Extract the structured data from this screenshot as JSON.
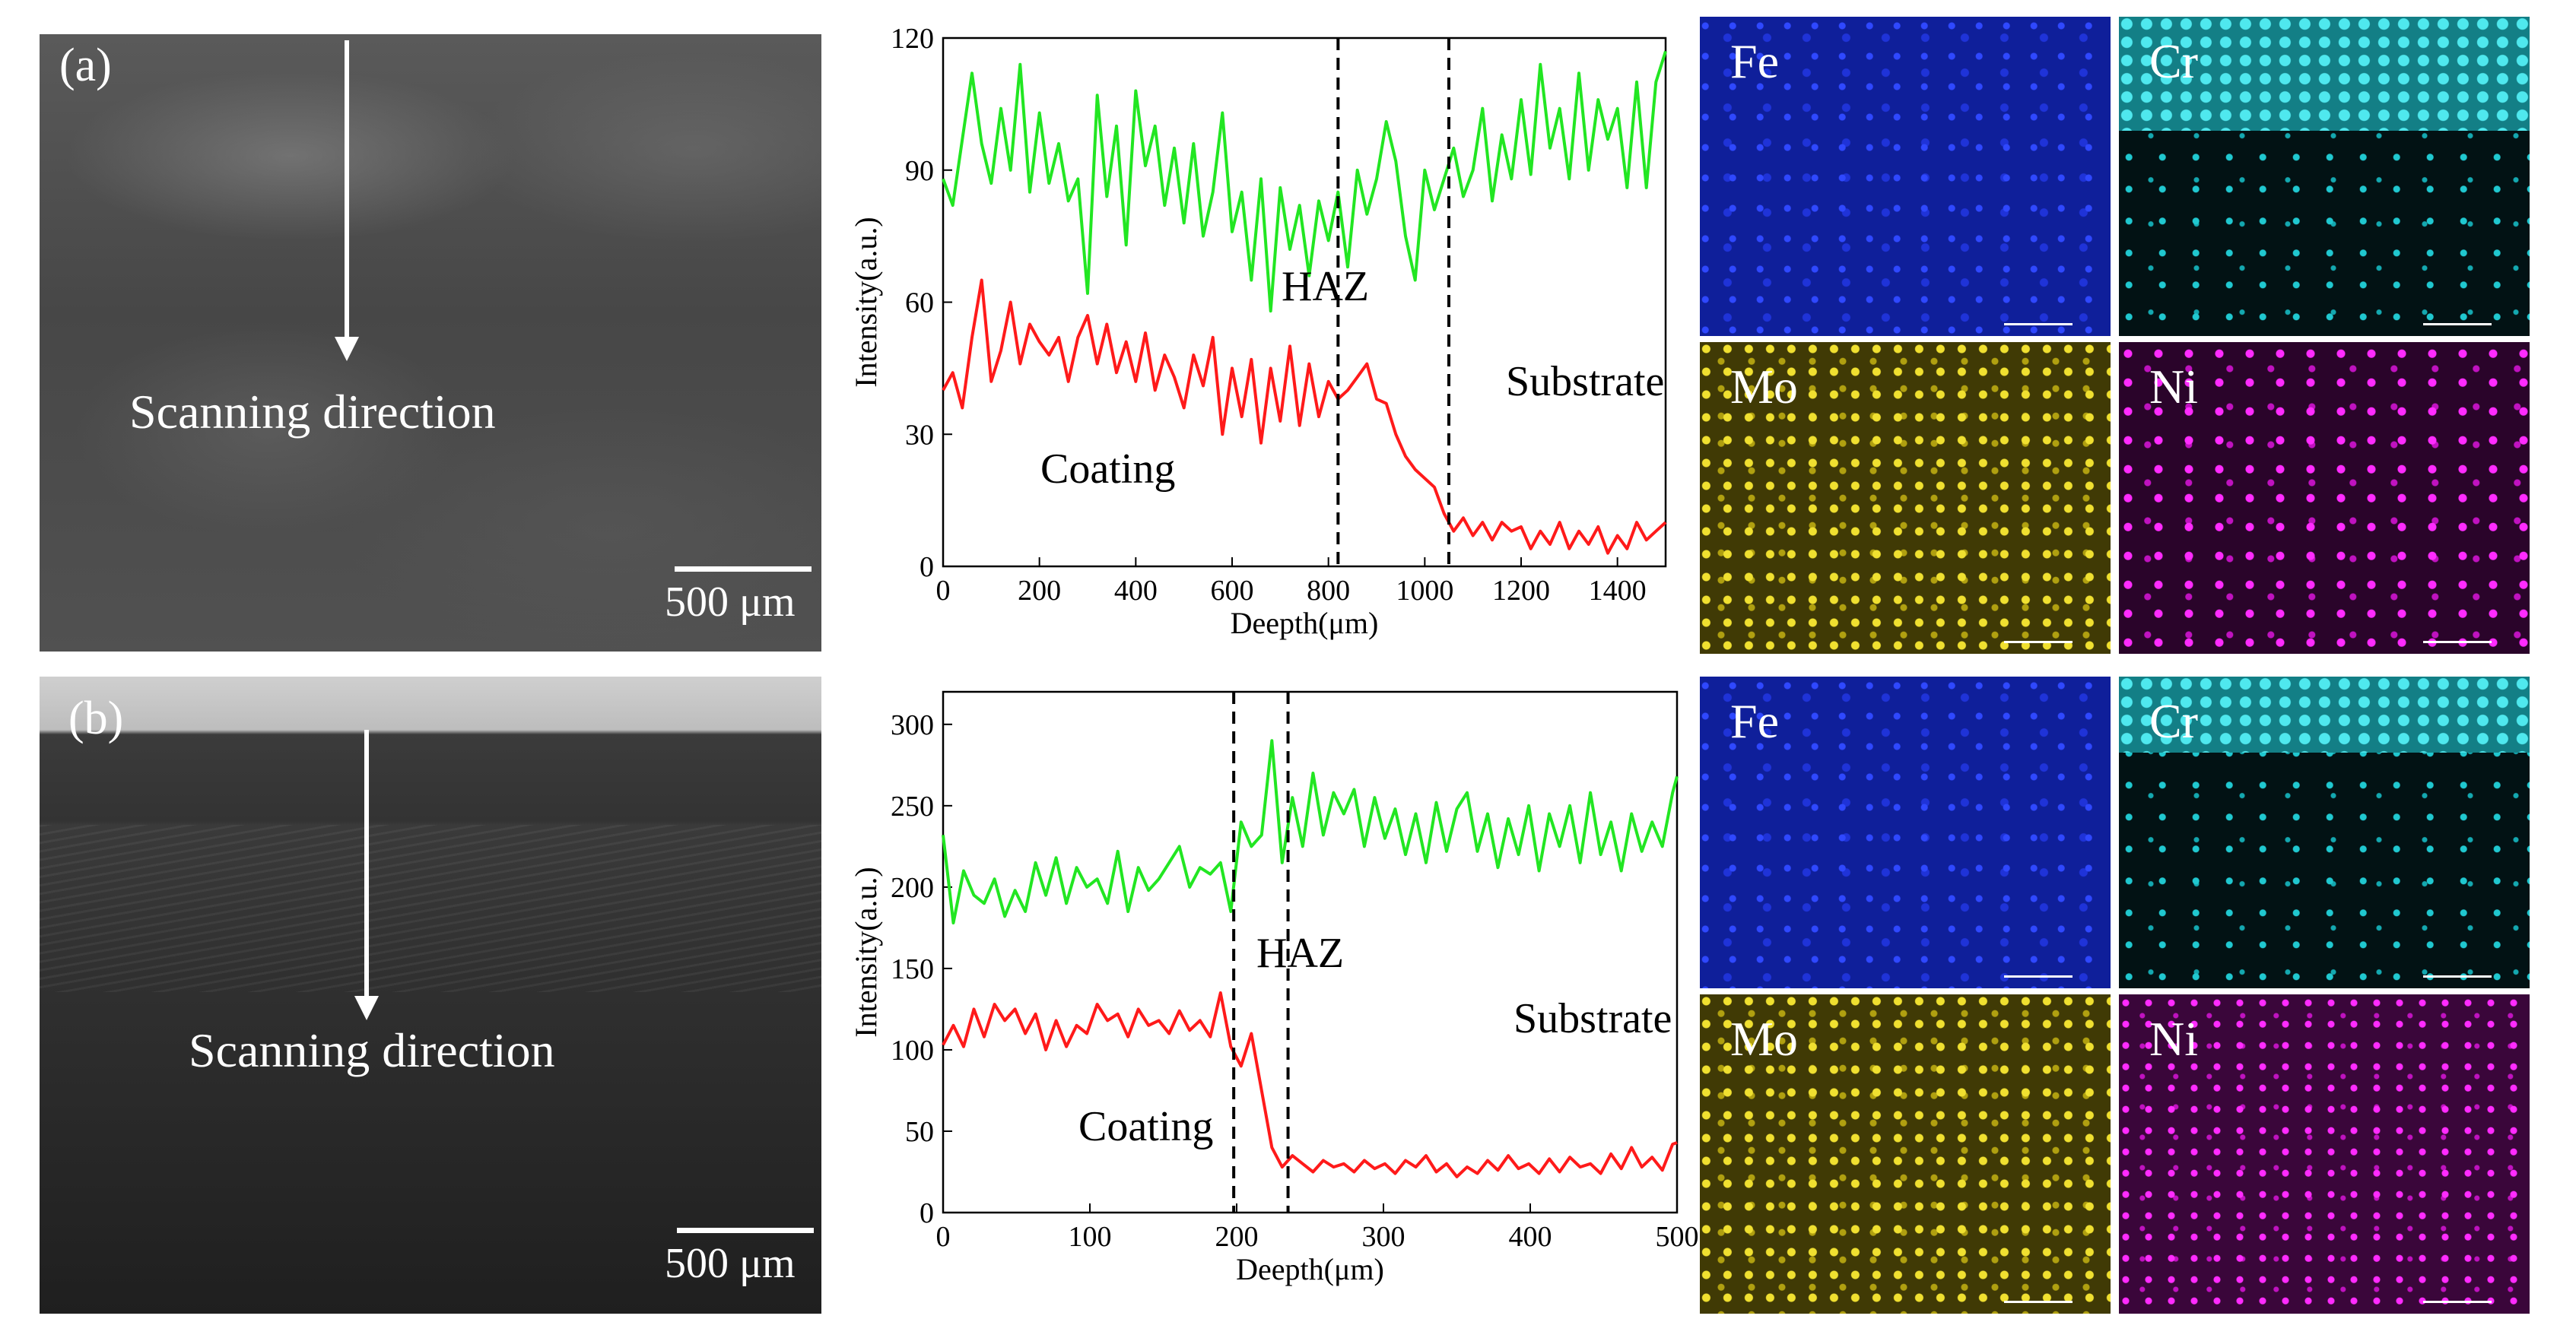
{
  "sem": {
    "a": {
      "label": "(a)",
      "scan_text": "Scanning direction",
      "scale_text": "500 μm"
    },
    "b": {
      "label": "(b)",
      "scan_text": "Scanning direction",
      "scale_text": "500 μm"
    }
  },
  "chart_data": [
    {
      "type": "line",
      "xlabel": "Deepth(μm)",
      "ylabel": "Intensity(a.u.)",
      "xlim": [
        0,
        1500
      ],
      "ylim": [
        0,
        120
      ],
      "xticks": [
        0,
        200,
        400,
        600,
        800,
        1000,
        1200,
        1400
      ],
      "yticks": [
        0,
        30,
        60,
        90,
        120
      ],
      "vlines": [
        820,
        1050
      ],
      "annotations": [
        "HAZ",
        "Substrate",
        "Coating"
      ],
      "series": [
        {
          "name": "green",
          "color": "#22e622",
          "x": [
            0,
            20,
            40,
            60,
            80,
            100,
            120,
            140,
            160,
            180,
            200,
            220,
            240,
            260,
            280,
            300,
            320,
            340,
            360,
            380,
            400,
            420,
            440,
            460,
            480,
            500,
            520,
            540,
            560,
            580,
            600,
            620,
            640,
            660,
            680,
            700,
            720,
            740,
            760,
            780,
            800,
            820,
            840,
            860,
            880,
            900,
            920,
            940,
            960,
            980,
            1000,
            1020,
            1040,
            1060,
            1080,
            1100,
            1120,
            1140,
            1160,
            1180,
            1200,
            1220,
            1240,
            1260,
            1280,
            1300,
            1320,
            1340,
            1360,
            1380,
            1400,
            1420,
            1440,
            1460,
            1480,
            1500
          ],
          "values": [
            88,
            82,
            97,
            112,
            96,
            87,
            104,
            90,
            114,
            85,
            103,
            87,
            96,
            83,
            88,
            62,
            107,
            84,
            100,
            73,
            108,
            91,
            100,
            82,
            95,
            78,
            96,
            75,
            85,
            103,
            76,
            85,
            65,
            88,
            58,
            86,
            72,
            82,
            66,
            83,
            74,
            85,
            68,
            90,
            80,
            88,
            101,
            92,
            75,
            65,
            90,
            81,
            88,
            95,
            84,
            90,
            104,
            83,
            98,
            88,
            106,
            89,
            114,
            95,
            104,
            88,
            112,
            90,
            106,
            97,
            104,
            86,
            110,
            86,
            110,
            117
          ]
        },
        {
          "name": "red",
          "color": "#ff1a1a",
          "x": [
            0,
            20,
            40,
            60,
            80,
            100,
            120,
            140,
            160,
            180,
            200,
            220,
            240,
            260,
            280,
            300,
            320,
            340,
            360,
            380,
            400,
            420,
            440,
            460,
            480,
            500,
            520,
            540,
            560,
            580,
            600,
            620,
            640,
            660,
            680,
            700,
            720,
            740,
            760,
            780,
            800,
            820,
            840,
            860,
            880,
            900,
            920,
            940,
            960,
            980,
            1000,
            1020,
            1040,
            1060,
            1080,
            1100,
            1120,
            1140,
            1160,
            1180,
            1200,
            1220,
            1240,
            1260,
            1280,
            1300,
            1320,
            1340,
            1360,
            1380,
            1400,
            1420,
            1440,
            1460,
            1480,
            1500
          ],
          "values": [
            40,
            44,
            36,
            52,
            65,
            42,
            49,
            60,
            46,
            55,
            51,
            48,
            52,
            42,
            52,
            57,
            46,
            55,
            44,
            51,
            42,
            53,
            40,
            48,
            43,
            36,
            48,
            41,
            52,
            30,
            45,
            34,
            47,
            28,
            45,
            33,
            50,
            32,
            46,
            34,
            42,
            38,
            40,
            43,
            46,
            38,
            37,
            30,
            25,
            22,
            20,
            18,
            12,
            8,
            11,
            7,
            10,
            6,
            10,
            8,
            9,
            4,
            8,
            5,
            10,
            4,
            8,
            5,
            9,
            3,
            7,
            4,
            10,
            6,
            8,
            10
          ]
        }
      ]
    },
    {
      "type": "line",
      "xlabel": "Deepth(μm)",
      "ylabel": "Intensity(a.u.)",
      "xlim": [
        0,
        500
      ],
      "ylim": [
        0,
        320
      ],
      "xticks": [
        0,
        100,
        200,
        300,
        400,
        500
      ],
      "yticks": [
        0,
        50,
        100,
        150,
        200,
        250,
        300
      ],
      "vlines": [
        198,
        235
      ],
      "annotations": [
        "HAZ",
        "Substrate",
        "Coating"
      ],
      "series": [
        {
          "name": "green",
          "color": "#22e622",
          "x": [
            0,
            7,
            14,
            21,
            28,
            35,
            42,
            49,
            56,
            63,
            70,
            77,
            84,
            91,
            98,
            105,
            112,
            119,
            126,
            133,
            140,
            147,
            154,
            161,
            168,
            175,
            182,
            189,
            196,
            203,
            210,
            217,
            224,
            231,
            238,
            245,
            252,
            259,
            266,
            273,
            280,
            287,
            294,
            301,
            308,
            315,
            322,
            329,
            336,
            343,
            350,
            357,
            364,
            371,
            378,
            385,
            392,
            399,
            406,
            413,
            420,
            427,
            434,
            441,
            448,
            455,
            462,
            469,
            476,
            483,
            490,
            497,
            500
          ],
          "values": [
            232,
            178,
            210,
            195,
            190,
            205,
            182,
            198,
            185,
            215,
            195,
            218,
            190,
            212,
            200,
            205,
            190,
            222,
            185,
            212,
            198,
            205,
            215,
            225,
            200,
            212,
            208,
            215,
            185,
            240,
            225,
            232,
            290,
            215,
            255,
            225,
            270,
            232,
            258,
            245,
            260,
            225,
            255,
            230,
            248,
            220,
            245,
            215,
            252,
            222,
            248,
            258,
            222,
            245,
            212,
            242,
            220,
            250,
            210,
            245,
            225,
            250,
            215,
            258,
            220,
            240,
            210,
            245,
            222,
            240,
            225,
            258,
            268
          ]
        },
        {
          "name": "red",
          "color": "#ff1a1a",
          "x": [
            0,
            7,
            14,
            21,
            28,
            35,
            42,
            49,
            56,
            63,
            70,
            77,
            84,
            91,
            98,
            105,
            112,
            119,
            126,
            133,
            140,
            147,
            154,
            161,
            168,
            175,
            182,
            189,
            196,
            203,
            210,
            217,
            224,
            231,
            238,
            245,
            252,
            259,
            266,
            273,
            280,
            287,
            294,
            301,
            308,
            315,
            322,
            329,
            336,
            343,
            350,
            357,
            364,
            371,
            378,
            385,
            392,
            399,
            406,
            413,
            420,
            427,
            434,
            441,
            448,
            455,
            462,
            469,
            476,
            483,
            490,
            497,
            500
          ],
          "values": [
            103,
            115,
            102,
            125,
            108,
            128,
            118,
            125,
            110,
            122,
            100,
            118,
            102,
            115,
            110,
            128,
            118,
            122,
            108,
            125,
            115,
            118,
            110,
            124,
            112,
            118,
            108,
            135,
            102,
            90,
            110,
            75,
            40,
            28,
            35,
            30,
            25,
            32,
            28,
            30,
            25,
            32,
            27,
            30,
            24,
            32,
            28,
            35,
            25,
            30,
            22,
            28,
            24,
            32,
            26,
            35,
            27,
            30,
            24,
            33,
            25,
            34,
            28,
            30,
            24,
            36,
            27,
            40,
            28,
            34,
            26,
            42,
            43
          ]
        }
      ]
    }
  ],
  "maps": {
    "row1": {
      "fe": "Fe",
      "cr": "Cr",
      "mo": "Mo",
      "ni": "Ni"
    },
    "row2": {
      "fe": "Fe",
      "cr": "Cr",
      "mo": "Mo",
      "ni": "Ni"
    }
  },
  "colors": {
    "green": "#22e622",
    "red": "#ff1a1a",
    "fe": "#1f33d8",
    "cr": "#20c8d0",
    "mo": "#e8d820",
    "ni": "#ff2bff"
  }
}
